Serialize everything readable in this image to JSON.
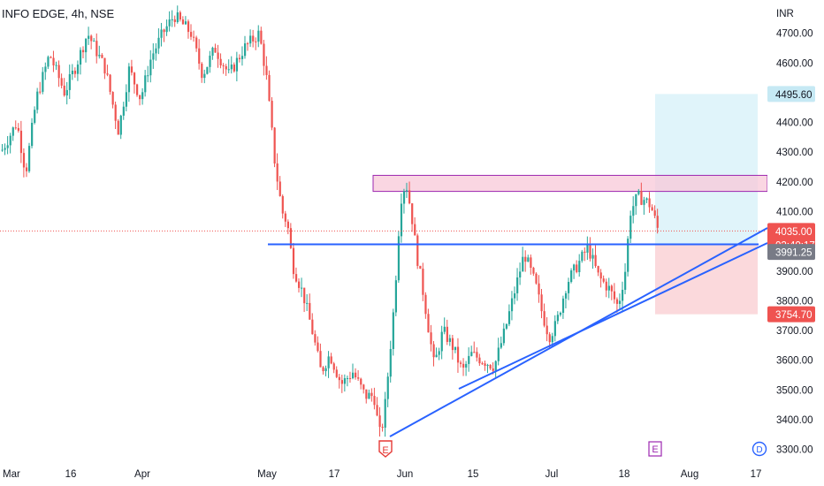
{
  "header": {
    "symbol_title": "INFO EDGE, 4h, NSE"
  },
  "chart_data": {
    "type": "candlestick",
    "currency_label": "INR",
    "y_ticks": [
      "4700.00",
      "4600.00",
      "4400.00",
      "4300.00",
      "4200.00",
      "4100.00",
      "3900.00",
      "3800.00",
      "3700.00",
      "3600.00",
      "3500.00",
      "3400.00",
      "3300.00"
    ],
    "x_ticks": [
      "Mar",
      "16",
      "Apr",
      "May",
      "17",
      "Jun",
      "15",
      "Jul",
      "18",
      "Aug",
      "17"
    ],
    "ylim": [
      3280,
      4760
    ],
    "price_tags": {
      "target": "4495.60",
      "current": "4035.00",
      "countdown": "02:40:17",
      "entry": "3991.25",
      "stop": "3754.70"
    },
    "levels": {
      "target": 4495.6,
      "current": 4035.0,
      "entry": 3991.25,
      "stop": 3754.7,
      "horizontal_line": 3990,
      "resistance_zone": [
        4168,
        4222
      ]
    },
    "trendlines": [
      {
        "from": [
          "May 27",
          3330
        ],
        "to": [
          "Aug 23",
          4050
        ]
      },
      {
        "from": [
          "Jun 12",
          3505
        ],
        "to": [
          "Aug 23",
          4020
        ]
      }
    ],
    "event_markers": [
      {
        "label": "E",
        "position": "late May",
        "color": "#e53935"
      },
      {
        "label": "E",
        "position": "late Jul",
        "color": "#9c27b0"
      },
      {
        "label": "D",
        "position": "mid Aug",
        "color": "#2962ff"
      }
    ],
    "colors": {
      "up": "#26a69a",
      "down": "#ef5350",
      "trend": "#2962ff",
      "zone": "#f8c8d8",
      "zone_border": "#9c27b0",
      "target_fill": "#e0f4fa",
      "stop_fill": "#fbd9dc"
    }
  }
}
